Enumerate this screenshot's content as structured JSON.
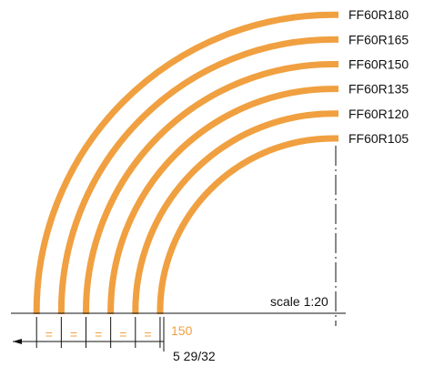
{
  "profiles": [
    {
      "label": "FF60R180",
      "radius": 180
    },
    {
      "label": "FF60R165",
      "radius": 165
    },
    {
      "label": "FF60R150",
      "radius": 150
    },
    {
      "label": "FF60R135",
      "radius": 135
    },
    {
      "label": "FF60R120",
      "radius": 120
    },
    {
      "label": "FF60R105",
      "radius": 105
    }
  ],
  "scale_label": "scale 1:20",
  "spacing_marks": [
    "=",
    "=",
    "=",
    "=",
    "="
  ],
  "dimension_width": "150",
  "dimension_total": "5  29/32",
  "colors": {
    "profile": "#f0a040",
    "profile_edge": "#c86e12",
    "line": "#111111"
  }
}
